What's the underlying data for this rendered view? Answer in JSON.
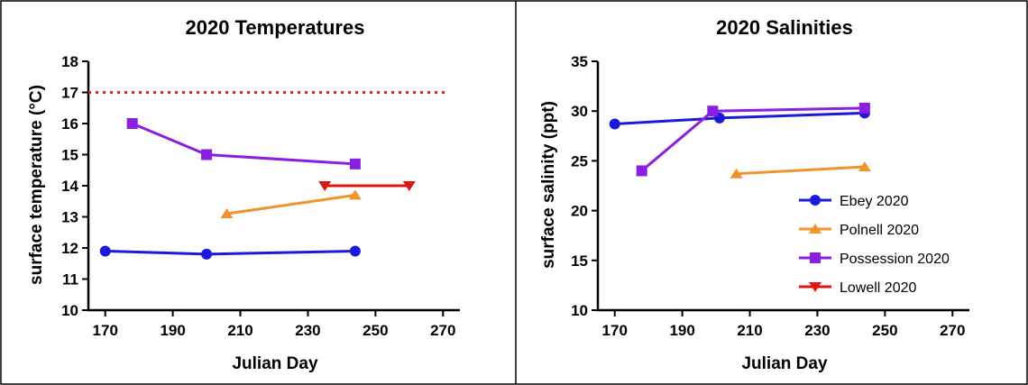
{
  "chart_data": [
    {
      "type": "line",
      "title": "2020 Temperatures",
      "xlabel": "Julian Day",
      "ylabel": "surface temperature (°C)",
      "xlim": [
        165,
        275
      ],
      "ylim": [
        10,
        18
      ],
      "xticks": [
        170,
        190,
        210,
        230,
        250,
        270
      ],
      "yticks": [
        10,
        11,
        12,
        13,
        14,
        15,
        16,
        17,
        18
      ],
      "grid": false,
      "reference_line": {
        "y": 17,
        "style": "dotted",
        "color": "#e02020"
      },
      "series": [
        {
          "key": "ebey",
          "color": "#1a1adb",
          "marker": "circle",
          "x": [
            170,
            200,
            244
          ],
          "y": [
            11.9,
            11.8,
            11.9
          ]
        },
        {
          "key": "polnell",
          "color": "#f0922e",
          "marker": "triangle-up",
          "x": [
            206,
            244
          ],
          "y": [
            13.1,
            13.7
          ]
        },
        {
          "key": "possession",
          "color": "#8a1fe0",
          "marker": "square",
          "x": [
            178,
            200,
            244
          ],
          "y": [
            16.0,
            15.0,
            14.7
          ]
        },
        {
          "key": "lowell",
          "color": "#e01515",
          "marker": "triangle-down",
          "x": [
            235,
            260
          ],
          "y": [
            14.0,
            14.0
          ]
        }
      ]
    },
    {
      "type": "line",
      "title": "2020 Salinities",
      "xlabel": "Julian Day",
      "ylabel": "surface salinity (ppt)",
      "xlim": [
        165,
        275
      ],
      "ylim": [
        10,
        35
      ],
      "xticks": [
        170,
        190,
        210,
        230,
        250,
        270
      ],
      "yticks": [
        10,
        15,
        20,
        25,
        30,
        35
      ],
      "grid": false,
      "legend_placement": "bottom-right",
      "series": [
        {
          "key": "ebey",
          "name": "Ebey 2020",
          "color": "#1a1adb",
          "marker": "circle",
          "x": [
            170,
            201,
            244
          ],
          "y": [
            28.7,
            29.3,
            29.8
          ]
        },
        {
          "key": "polnell",
          "name": "Polnell 2020",
          "color": "#f0922e",
          "marker": "triangle-up",
          "x": [
            206,
            244
          ],
          "y": [
            23.7,
            24.4
          ]
        },
        {
          "key": "possession",
          "name": "Possession 2020",
          "color": "#8a1fe0",
          "marker": "square",
          "x": [
            178,
            199,
            244
          ],
          "y": [
            24.0,
            30.0,
            30.3
          ]
        },
        {
          "key": "lowell",
          "name": "Lowell 2020",
          "color": "#e01515",
          "marker": "triangle-down",
          "x": [],
          "y": []
        }
      ]
    }
  ]
}
